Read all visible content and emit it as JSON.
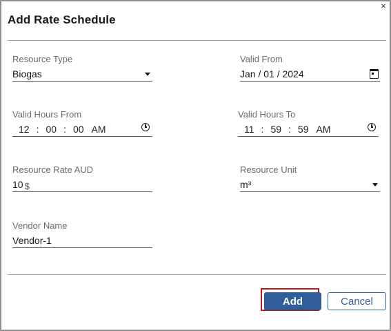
{
  "dialog": {
    "title": "Add Rate Schedule",
    "close_glyph": "×"
  },
  "fields": {
    "resource_type": {
      "label": "Resource Type",
      "value": "Biogas"
    },
    "valid_from": {
      "label": "Valid From",
      "value": "Jan / 01 / 2024"
    },
    "valid_hours_from": {
      "label": "Valid Hours From",
      "hour": "12",
      "minute": "00",
      "second": "00",
      "ampm": "AM"
    },
    "valid_hours_to": {
      "label": "Valid Hours To",
      "hour": "11",
      "minute": "59",
      "second": "59",
      "ampm": "AM"
    },
    "resource_rate": {
      "label": "Resource Rate AUD",
      "value": "10",
      "currency_symbol": "$"
    },
    "resource_unit": {
      "label": "Resource Unit",
      "value": "m³"
    },
    "vendor_name": {
      "label": "Vendor Name",
      "value": "Vendor-1"
    }
  },
  "time_separator": ":",
  "buttons": {
    "add_label": "Add",
    "cancel_label": "Cancel"
  },
  "icons": {
    "dropdown": "chevron-down-icon",
    "calendar": "calendar-icon",
    "clock": "clock-icon",
    "close": "close-icon"
  },
  "colors": {
    "primary": "#2f5e9a",
    "highlight": "#c0141c"
  }
}
